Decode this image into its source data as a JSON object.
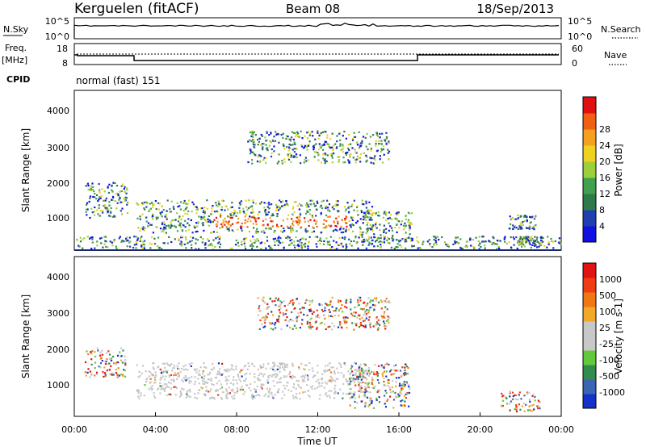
{
  "header": {
    "station": "Kerguelen (fitACF)",
    "beam": "Beam 08",
    "date": "18/Sep/2013"
  },
  "sky_panel": {
    "left_label": "N.Sky",
    "right_label": "N.Search",
    "left_ticks": [
      "10^5",
      "10^0"
    ],
    "right_ticks": [
      "10^5",
      "10^0"
    ]
  },
  "freq_panel": {
    "left_label_1": "Freq.",
    "left_label_2": "[MHz]",
    "left_ticks": [
      "18",
      "8"
    ],
    "right_label": "Nave",
    "right_ticks": [
      "60",
      "0"
    ]
  },
  "cpid": {
    "label": "CPID",
    "mode": "normal (fast) 151"
  },
  "chart_data": [
    {
      "type": "heatmap",
      "name": "power",
      "ylabel": "Slant Range [km]",
      "ylim": [
        200,
        4600
      ],
      "xlim_hours": [
        0,
        24
      ],
      "y_ticks": [
        "1000",
        "2000",
        "3000",
        "4000"
      ],
      "colorbar_label": "Power [dB]",
      "colorbar_ticks": [
        "4",
        "8",
        "12",
        "16",
        "20",
        "24",
        "28"
      ],
      "colorbar_colors": [
        "#1010e0",
        "#1f3fb0",
        "#2f7a4a",
        "#3fa050",
        "#9ccf3c",
        "#f0d020",
        "#f5a020",
        "#f06010",
        "#e01010"
      ],
      "regions": [
        {
          "t0": 3.0,
          "t1": 14.7,
          "r0": 700,
          "r1": 1600,
          "peak_t0": 6.8,
          "peak_t1": 13.5,
          "peak_r0": 850,
          "peak_r1": 1150
        },
        {
          "t0": 0.5,
          "t1": 2.6,
          "r0": 1100,
          "r1": 2100
        },
        {
          "t0": 8.5,
          "t1": 15.5,
          "r0": 2600,
          "r1": 3500
        },
        {
          "t0": 14.0,
          "t1": 16.6,
          "r0": 450,
          "r1": 1300
        },
        {
          "t0": 21.4,
          "t1": 22.7,
          "r0": 800,
          "r1": 1200
        },
        {
          "t0": 21.8,
          "t1": 23.0,
          "r0": 350,
          "r1": 600
        },
        {
          "t0": 0.0,
          "t1": 24.0,
          "r0": 250,
          "r1": 600
        }
      ]
    },
    {
      "type": "heatmap",
      "name": "velocity",
      "ylabel": "Slant Range [km]",
      "ylim": [
        200,
        4600
      ],
      "xlim_hours": [
        0,
        24
      ],
      "y_ticks": [
        "1000",
        "2000",
        "3000",
        "4000"
      ],
      "colorbar_label": "Velocity [m s-1]",
      "colorbar_ticks": [
        "1000",
        "500",
        "100",
        "25",
        "-25",
        "-100",
        "-500",
        "-1000"
      ],
      "colorbar_colors": [
        "#1432c8",
        "#3c64b4",
        "#328c50",
        "#64c83c",
        "#c8c8c8",
        "#c8c8c8",
        "#f0aa28",
        "#f07814",
        "#f03c14",
        "#e01414"
      ],
      "regions": [
        {
          "t0": 3.0,
          "t1": 14.5,
          "r0": 700,
          "r1": 1700
        },
        {
          "t0": 0.5,
          "t1": 2.5,
          "r0": 1300,
          "r1": 2100
        },
        {
          "t0": 9.0,
          "t1": 15.5,
          "r0": 2600,
          "r1": 3500
        },
        {
          "t0": 13.5,
          "t1": 16.5,
          "r0": 450,
          "r1": 1700
        },
        {
          "t0": 21.0,
          "t1": 23.0,
          "r0": 350,
          "r1": 900
        }
      ]
    }
  ],
  "x_axis": {
    "label": "Time UT",
    "ticks": [
      "00:00",
      "04:00",
      "08:00",
      "12:00",
      "16:00",
      "20:00",
      "00:00"
    ]
  }
}
